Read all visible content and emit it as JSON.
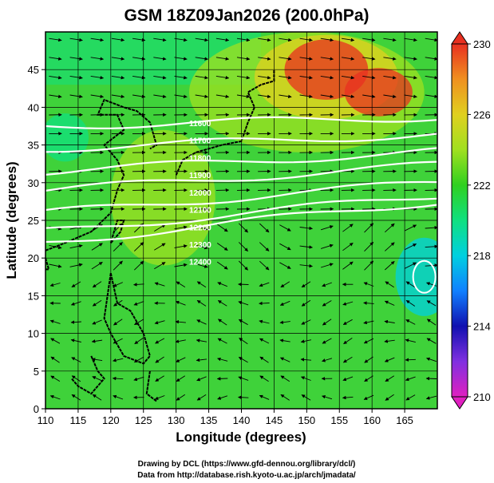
{
  "chart_data": {
    "type": "heatmap",
    "title": "GSM 18Z09Jan2026 (200.0hPa)",
    "xlabel": "Longitude (degrees)",
    "ylabel": "Latitude  (degrees)",
    "xlim": [
      110,
      170
    ],
    "ylim": [
      0,
      50
    ],
    "x_ticks": [
      "110",
      "115",
      "120",
      "125",
      "130",
      "135",
      "140",
      "145",
      "150",
      "155",
      "160",
      "165"
    ],
    "y_ticks": [
      "0",
      "5",
      "10",
      "15",
      "20",
      "25",
      "30",
      "35",
      "40",
      "45"
    ],
    "grid": true,
    "colorbar": {
      "range": [
        210,
        230
      ],
      "tick_labels": [
        "210",
        "214",
        "218",
        "222",
        "226",
        "230"
      ],
      "colors": [
        "#e020c0",
        "#8030e0",
        "#1010b0",
        "#1080ff",
        "#00d0e0",
        "#10e080",
        "#30d020",
        "#a0e020",
        "#e0d020",
        "#f09020",
        "#e83020"
      ]
    },
    "temperature_field": {
      "background_value": 221.5,
      "warm_core_1": {
        "lon": 153,
        "lat": 45,
        "value": 229.5
      },
      "warm_core_2": {
        "lon": 161,
        "lat": 42,
        "value": 229
      },
      "cold_spot_1": {
        "lon": 168,
        "lat": 17.5,
        "value": 217.5
      },
      "cold_spot_2": {
        "lon": 113,
        "lat": 36,
        "value": 219
      },
      "cool_band": {
        "lat_center": 46,
        "value": 219.5
      }
    },
    "contour_labels": [
      "11600",
      "11700",
      "11800",
      "11900",
      "12000",
      "12100",
      "12200",
      "12300",
      "12400"
    ],
    "contour_lats_at_110": [
      37.5,
      34.5,
      31.5,
      29,
      26,
      23.5,
      22
    ],
    "wind_streamlines": "westerly jet north of 25N, trade easterlies south"
  },
  "credits": {
    "line1": "Drawing by DCL (https://www.gfd-dennou.org/library/dcl/)",
    "line2": "Data from http://database.rish.kyoto-u.ac.jp/arch/jmadata/"
  }
}
